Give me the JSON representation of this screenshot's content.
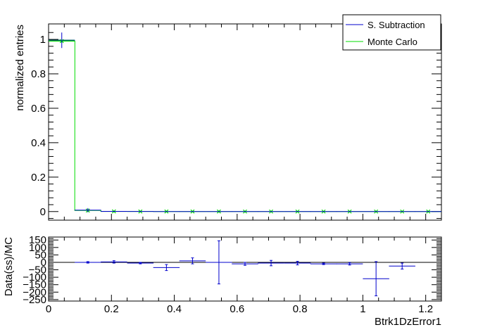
{
  "chart_data": [
    {
      "type": "scatter",
      "panel": "main",
      "ylabel": "normalized entries",
      "xlim": [
        0,
        1.25
      ],
      "ylim": [
        -0.05,
        1.09
      ],
      "yticks": [
        0,
        0.2,
        0.4,
        0.6,
        0.8,
        1
      ],
      "yticklabels": [
        "0",
        "0.2",
        "0.4",
        "0.6",
        "0.8",
        "1"
      ],
      "legend": {
        "position": "top-right"
      },
      "series": [
        {
          "name": "S. Subtraction",
          "color": "#0000cc",
          "x": [
            0.042,
            0.125,
            0.208,
            0.292,
            0.375,
            0.458,
            0.542,
            0.625,
            0.708,
            0.792,
            0.875,
            0.958,
            1.042,
            1.125,
            1.208
          ],
          "xerr": [
            0.042,
            0.042,
            0.042,
            0.042,
            0.042,
            0.042,
            0.042,
            0.042,
            0.042,
            0.042,
            0.042,
            0.042,
            0.042,
            0.042,
            0.042
          ],
          "y": [
            0.995,
            0.008,
            0.001,
            0.0005,
            0.0003,
            0.0003,
            0.0002,
            0.0001,
            0.0001,
            0.0001,
            0.0001,
            0.0001,
            0.0001,
            0.0001,
            0.0001
          ],
          "yerr": [
            0.045,
            0.012,
            0.003,
            0.002,
            0.001,
            0.001,
            0.001,
            0.001,
            0.001,
            0.001,
            0.001,
            0.001,
            0.001,
            0.001,
            0.001
          ]
        },
        {
          "name": "Monte Carlo",
          "color": "#00dd00",
          "x": [
            0.042,
            0.125,
            0.208,
            0.292,
            0.375,
            0.458,
            0.542,
            0.625,
            0.708,
            0.792,
            0.875,
            0.958,
            1.042,
            1.125,
            1.208
          ],
          "y": [
            0.99,
            0.006,
            0.0008,
            0.0004,
            0.0003,
            0.0002,
            0.0002,
            0.0001,
            0.0001,
            0.0001,
            0.0001,
            0.0001,
            0.0001,
            0.0001,
            0.0001
          ]
        }
      ]
    },
    {
      "type": "scatter",
      "panel": "ratio",
      "xlabel": "Btrk1DzError1",
      "ylabel": "Data(ss)/MC",
      "xlim": [
        0,
        1.25
      ],
      "ylim": [
        -260,
        170
      ],
      "xticks": [
        0,
        0.2,
        0.4,
        0.6,
        0.8,
        1,
        1.2
      ],
      "xticklabels": [
        "0",
        "0.2",
        "0.4",
        "0.6",
        "0.8",
        "1",
        "1.2"
      ],
      "yticks": [
        150,
        100,
        50,
        0,
        -50,
        -100,
        -150,
        -200,
        -250
      ],
      "yticklabels": [
        "150",
        "100",
        "50",
        "0",
        "−50",
        "−100",
        "−150",
        "−200",
        "−250"
      ],
      "series": [
        {
          "name": "",
          "color": "#0000cc",
          "x": [
            0.125,
            0.208,
            0.292,
            0.375,
            0.458,
            0.542,
            0.625,
            0.708,
            0.792,
            0.875,
            0.958,
            1.042,
            1.125
          ],
          "xerr": [
            0.042,
            0.042,
            0.042,
            0.042,
            0.042,
            0.042,
            0.042,
            0.042,
            0.042,
            0.042,
            0.042,
            0.042,
            0.042
          ],
          "y": [
            0,
            3,
            -5,
            -35,
            10,
            0,
            -10,
            -5,
            -5,
            -10,
            -10,
            -110,
            -25
          ],
          "yerr": [
            5,
            8,
            5,
            20,
            20,
            145,
            10,
            18,
            12,
            5,
            8,
            115,
            20
          ]
        }
      ]
    }
  ]
}
